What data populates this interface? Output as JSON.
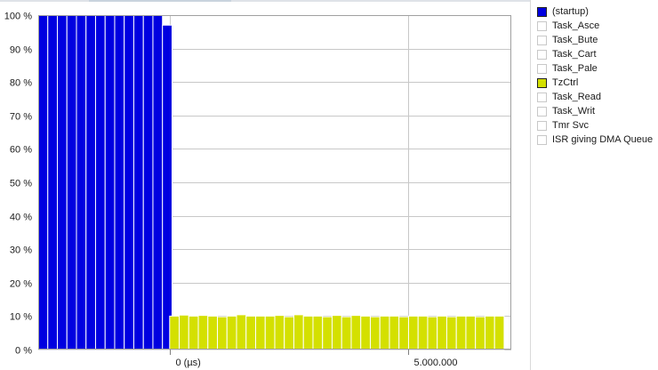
{
  "chart_data": {
    "type": "bar",
    "title": "",
    "xlabel": "",
    "ylabel": "",
    "ylim": [
      0,
      100
    ],
    "yticks": [
      "0 %",
      "10 %",
      "20 %",
      "30 %",
      "40 %",
      "50 %",
      "60 %",
      "70 %",
      "80 %",
      "90 %",
      "100 %"
    ],
    "xticks": [
      {
        "value": 0,
        "label": "0 (µs)"
      },
      {
        "value": 5000000,
        "label": "5.000.000"
      }
    ],
    "xlim": [
      -2750000,
      7150000
    ],
    "bin_width": 200000,
    "grid": true,
    "legend_position": "right",
    "series": [
      {
        "name": "(startup)",
        "color": "#0000e0",
        "x_start": -2750000,
        "values": [
          100,
          100,
          100,
          100,
          100,
          100,
          100,
          100,
          100,
          100,
          100,
          100,
          100,
          97
        ]
      },
      {
        "name": "TzCtrl",
        "color": "#d4e000",
        "x_start": 0,
        "values": [
          10,
          10.3,
          10,
          10.2,
          10,
          9.8,
          10,
          10.4,
          10,
          10,
          10,
          10.2,
          9.8,
          10.4,
          10,
          10,
          9.8,
          10.2,
          9.8,
          10.2,
          10,
          9.8,
          10,
          10,
          9.8,
          10,
          10,
          9.8,
          10,
          9.8,
          10,
          10,
          9.8,
          10,
          10
        ]
      }
    ]
  },
  "legend": {
    "items": [
      {
        "label": "(startup)",
        "color": "#0000e0"
      },
      {
        "label": "Task_Asce",
        "color": ""
      },
      {
        "label": "Task_Bute",
        "color": ""
      },
      {
        "label": "Task_Cart",
        "color": ""
      },
      {
        "label": "Task_Pale",
        "color": ""
      },
      {
        "label": "TzCtrl",
        "color": "#d4e000"
      },
      {
        "label": "Task_Read",
        "color": ""
      },
      {
        "label": "Task_Writ",
        "color": ""
      },
      {
        "label": "Tmr Svc",
        "color": ""
      },
      {
        "label": "ISR giving DMA Queue",
        "color": ""
      }
    ]
  }
}
